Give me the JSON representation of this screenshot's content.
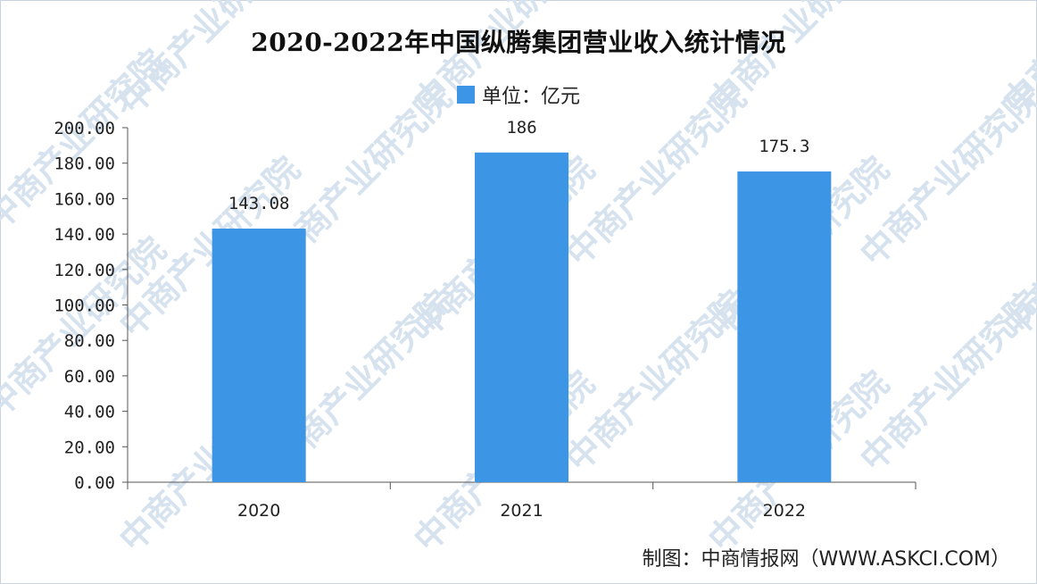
{
  "chart_data": {
    "type": "bar",
    "title": "2020-2022年中国纵腾集团营业收入统计情况",
    "legend": "单位：亿元",
    "categories": [
      "2020",
      "2021",
      "2022"
    ],
    "values": [
      143.08,
      186,
      175.3
    ],
    "value_labels": [
      "143.08",
      "186",
      "175.3"
    ],
    "ylim": [
      0,
      200
    ],
    "y_ticks": [
      "0.00",
      "20.00",
      "40.00",
      "60.00",
      "80.00",
      "100.00",
      "120.00",
      "140.00",
      "160.00",
      "180.00",
      "200.00"
    ],
    "grid": false,
    "legend_position": "top-center",
    "bar_color": "#3d95e6"
  },
  "footer": "制图：中商情报网（WWW.ASKCI.COM）",
  "watermark": "中商产业研究院"
}
